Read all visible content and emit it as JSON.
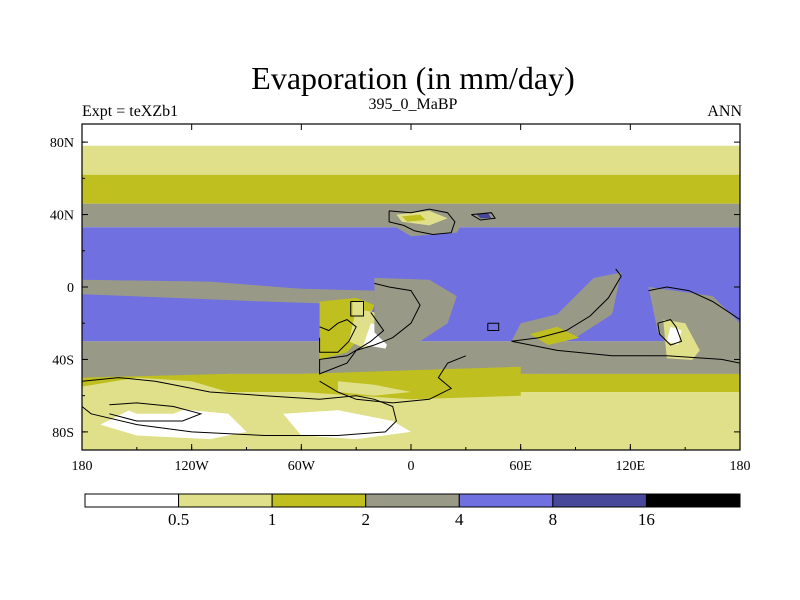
{
  "chart_data": {
    "type": "contour-map",
    "title": "Evaporation (in mm/day)",
    "left_label": "Expt = teXZb1",
    "center_label": "395_0_MaBP",
    "right_label": "ANN",
    "xlim": [
      -180,
      180
    ],
    "ylim": [
      -90,
      90
    ],
    "x_ticks": [
      {
        "value": -180,
        "label": "180"
      },
      {
        "value": -120,
        "label": "120W"
      },
      {
        "value": -60,
        "label": "60W"
      },
      {
        "value": 0,
        "label": "0"
      },
      {
        "value": 60,
        "label": "60E"
      },
      {
        "value": 120,
        "label": "120E"
      },
      {
        "value": 180,
        "label": "180"
      }
    ],
    "y_ticks": [
      {
        "value": 80,
        "label": "80N"
      },
      {
        "value": 40,
        "label": "40N"
      },
      {
        "value": 0,
        "label": "0"
      },
      {
        "value": -40,
        "label": "40S"
      },
      {
        "value": -80,
        "label": "80S"
      }
    ],
    "contour_levels": [
      0.5,
      1,
      2,
      4,
      8,
      16
    ],
    "colorbar_labels": [
      "0.5",
      "1",
      "2",
      "4",
      "8",
      "16"
    ],
    "colors": [
      "#ffffff",
      "#e0e08a",
      "#bfbf1f",
      "#999988",
      "#7070e0",
      "#48489a",
      "#000000"
    ],
    "bands": [
      {
        "lat_top": 90,
        "lat_bottom": 78,
        "class": 0
      },
      {
        "lat_top": 78,
        "lat_bottom": 62,
        "class": 1
      },
      {
        "lat_top": 62,
        "lat_bottom": 46,
        "class": 2
      },
      {
        "lat_top": 46,
        "lat_bottom": 33,
        "class": 3
      },
      {
        "lat_top": 33,
        "lat_bottom": -30,
        "class": 4
      },
      {
        "lat_top": -30,
        "lat_bottom": -48,
        "class": 3
      },
      {
        "lat_top": -48,
        "lat_bottom": -58,
        "class": 2
      },
      {
        "lat_top": -58,
        "lat_bottom": -90,
        "class": 1
      }
    ],
    "patches": [
      {
        "class": 3,
        "points": [
          [
            -180,
            4
          ],
          [
            -110,
            3
          ],
          [
            -60,
            -1
          ],
          [
            -20,
            -2
          ],
          [
            -20,
            -10
          ],
          [
            -80,
            -8
          ],
          [
            -180,
            -4
          ]
        ]
      },
      {
        "class": 3,
        "points": [
          [
            -180,
            -42
          ],
          [
            -150,
            -38
          ],
          [
            -130,
            -40
          ],
          [
            -100,
            -48
          ],
          [
            -180,
            -50
          ]
        ]
      },
      {
        "class": 1,
        "points": [
          [
            -180,
            -55
          ],
          [
            -150,
            -50
          ],
          [
            -120,
            -52
          ],
          [
            -100,
            -58
          ],
          [
            -120,
            -66
          ],
          [
            -180,
            -64
          ]
        ]
      },
      {
        "class": 2,
        "points": [
          [
            -50,
            -8
          ],
          [
            -30,
            -6
          ],
          [
            -20,
            -10
          ],
          [
            -26,
            -26
          ],
          [
            -35,
            -36
          ],
          [
            -50,
            -40
          ],
          [
            -50,
            -20
          ]
        ]
      },
      {
        "class": 1,
        "points": [
          [
            -30,
            -12
          ],
          [
            -20,
            -14
          ],
          [
            -15,
            -22
          ],
          [
            -25,
            -34
          ],
          [
            -34,
            -30
          ]
        ]
      },
      {
        "class": 0,
        "points": [
          [
            -22,
            -20
          ],
          [
            -10,
            -24
          ],
          [
            -14,
            -34
          ],
          [
            -26,
            -32
          ]
        ]
      },
      {
        "class": 3,
        "points": [
          [
            -20,
            5
          ],
          [
            10,
            4
          ],
          [
            25,
            -5
          ],
          [
            20,
            -20
          ],
          [
            5,
            -30
          ],
          [
            -10,
            -35
          ],
          [
            -20,
            -25
          ]
        ]
      },
      {
        "class": 1,
        "points": [
          [
            -32,
            -8
          ],
          [
            -26,
            -8
          ],
          [
            -26,
            -16
          ],
          [
            -32,
            -16
          ]
        ]
      },
      {
        "class": 3,
        "points": [
          [
            -10,
            40
          ],
          [
            20,
            42
          ],
          [
            30,
            38
          ],
          [
            25,
            30
          ],
          [
            0,
            28
          ],
          [
            -10,
            34
          ]
        ]
      },
      {
        "class": 1,
        "points": [
          [
            -8,
            40
          ],
          [
            10,
            42
          ],
          [
            20,
            38
          ],
          [
            10,
            34
          ],
          [
            -5,
            36
          ]
        ]
      },
      {
        "class": 2,
        "points": [
          [
            -5,
            39
          ],
          [
            5,
            40
          ],
          [
            8,
            37
          ],
          [
            -2,
            36
          ]
        ]
      },
      {
        "class": 5,
        "points": [
          [
            36,
            40
          ],
          [
            42,
            41
          ],
          [
            44,
            38
          ],
          [
            38,
            38
          ]
        ]
      },
      {
        "class": 3,
        "points": [
          [
            60,
            -20
          ],
          [
            80,
            -15
          ],
          [
            100,
            5
          ],
          [
            115,
            8
          ],
          [
            110,
            -15
          ],
          [
            90,
            -28
          ],
          [
            70,
            -32
          ],
          [
            55,
            -30
          ]
        ]
      },
      {
        "class": 2,
        "points": [
          [
            65,
            -26
          ],
          [
            80,
            -22
          ],
          [
            92,
            -28
          ],
          [
            75,
            -32
          ]
        ]
      },
      {
        "class": 3,
        "points": [
          [
            130,
            0
          ],
          [
            165,
            -5
          ],
          [
            180,
            -20
          ],
          [
            180,
            -42
          ],
          [
            150,
            -45
          ],
          [
            135,
            -25
          ]
        ]
      },
      {
        "class": 1,
        "points": [
          [
            138,
            -18
          ],
          [
            150,
            -20
          ],
          [
            158,
            -35
          ],
          [
            150,
            -45
          ],
          [
            140,
            -40
          ]
        ]
      },
      {
        "class": 0,
        "points": [
          [
            142,
            -22
          ],
          [
            148,
            -24
          ],
          [
            146,
            -32
          ],
          [
            140,
            -30
          ]
        ]
      },
      {
        "class": 3,
        "points": [
          [
            12,
            -40
          ],
          [
            60,
            -36
          ],
          [
            120,
            -38
          ],
          [
            180,
            -42
          ],
          [
            180,
            -46
          ],
          [
            100,
            -46
          ],
          [
            30,
            -48
          ]
        ]
      },
      {
        "class": 2,
        "points": [
          [
            -60,
            -48
          ],
          [
            0,
            -46
          ],
          [
            60,
            -44
          ],
          [
            60,
            -60
          ],
          [
            0,
            -62
          ],
          [
            -60,
            -58
          ]
        ]
      },
      {
        "class": 1,
        "points": [
          [
            -40,
            -52
          ],
          [
            -20,
            -54
          ],
          [
            0,
            -58
          ],
          [
            -20,
            -60
          ],
          [
            -40,
            -58
          ]
        ]
      },
      {
        "class": 0,
        "points": [
          [
            -150,
            -66
          ],
          [
            -120,
            -68
          ],
          [
            -100,
            -70
          ],
          [
            -90,
            -80
          ],
          [
            -110,
            -84
          ],
          [
            -150,
            -82
          ],
          [
            -170,
            -76
          ]
        ]
      },
      {
        "class": 0,
        "points": [
          [
            -70,
            -70
          ],
          [
            -40,
            -68
          ],
          [
            -10,
            -74
          ],
          [
            0,
            -80
          ],
          [
            -30,
            -84
          ],
          [
            -60,
            -82
          ]
        ]
      },
      {
        "class": 1,
        "points": [
          [
            -160,
            -66
          ],
          [
            -140,
            -64
          ],
          [
            -120,
            -66
          ],
          [
            -130,
            -70
          ],
          [
            -150,
            -70
          ]
        ]
      }
    ],
    "coastlines": [
      {
        "points": [
          [
            -180,
            -52
          ],
          [
            -160,
            -50
          ],
          [
            -140,
            -52
          ],
          [
            -130,
            -54
          ],
          [
            -110,
            -58
          ],
          [
            -80,
            -60
          ],
          [
            -50,
            -62
          ],
          [
            -30,
            -60
          ],
          [
            -20,
            -62
          ],
          [
            -10,
            -66
          ],
          [
            -8,
            -74
          ],
          [
            -14,
            -80
          ],
          [
            -40,
            -82
          ],
          [
            -80,
            -82
          ],
          [
            -120,
            -80
          ],
          [
            -150,
            -76
          ],
          [
            -175,
            -70
          ],
          [
            -180,
            -66
          ]
        ]
      },
      {
        "points": [
          [
            -165,
            -65
          ],
          [
            -150,
            -64
          ],
          [
            -130,
            -66
          ],
          [
            -115,
            -70
          ],
          [
            -125,
            -74
          ],
          [
            -150,
            -74
          ],
          [
            -165,
            -70
          ]
        ]
      },
      {
        "points": [
          [
            -50,
            -22
          ],
          [
            -45,
            -24
          ],
          [
            -40,
            -20
          ],
          [
            -35,
            -18
          ],
          [
            -30,
            -22
          ],
          [
            -34,
            -30
          ],
          [
            -40,
            -36
          ],
          [
            -50,
            -36
          ],
          [
            -50,
            -28
          ]
        ]
      },
      {
        "points": [
          [
            -20,
            2
          ],
          [
            -12,
            0
          ],
          [
            0,
            -2
          ],
          [
            5,
            -10
          ],
          [
            0,
            -20
          ],
          [
            -10,
            -28
          ],
          [
            -20,
            -32
          ],
          [
            -30,
            -35
          ],
          [
            -35,
            -42
          ],
          [
            -50,
            -48
          ],
          [
            -50,
            -40
          ],
          [
            -35,
            -38
          ],
          [
            -22,
            -30
          ],
          [
            -15,
            -24
          ],
          [
            -22,
            -14
          ]
        ]
      },
      {
        "points": [
          [
            -33,
            -8
          ],
          [
            -26,
            -8
          ],
          [
            -26,
            -16
          ],
          [
            -33,
            -16
          ],
          [
            -33,
            -8
          ]
        ]
      },
      {
        "points": [
          [
            -12,
            42
          ],
          [
            0,
            41
          ],
          [
            10,
            43
          ],
          [
            20,
            41
          ],
          [
            24,
            36
          ],
          [
            22,
            30
          ],
          [
            12,
            29
          ],
          [
            2,
            31
          ],
          [
            -4,
            34
          ],
          [
            -12,
            36
          ],
          [
            -12,
            42
          ]
        ]
      },
      {
        "points": [
          [
            33,
            40
          ],
          [
            44,
            41
          ],
          [
            46,
            38
          ],
          [
            38,
            37
          ],
          [
            33,
            40
          ]
        ]
      },
      {
        "points": [
          [
            30,
            -38
          ],
          [
            20,
            -42
          ],
          [
            15,
            -50
          ],
          [
            22,
            -56
          ],
          [
            10,
            -62
          ],
          [
            -10,
            -64
          ],
          [
            -30,
            -62
          ],
          [
            -40,
            -58
          ],
          [
            -50,
            -52
          ]
        ]
      },
      {
        "points": [
          [
            42,
            -20
          ],
          [
            48,
            -20
          ],
          [
            48,
            -24
          ],
          [
            42,
            -24
          ],
          [
            42,
            -20
          ]
        ]
      },
      {
        "points": [
          [
            55,
            -30
          ],
          [
            70,
            -28
          ],
          [
            85,
            -24
          ],
          [
            98,
            -16
          ],
          [
            108,
            -6
          ],
          [
            115,
            6
          ],
          [
            112,
            10
          ]
        ]
      },
      {
        "points": [
          [
            55,
            -30
          ],
          [
            80,
            -35
          ],
          [
            110,
            -38
          ],
          [
            140,
            -38
          ],
          [
            170,
            -40
          ],
          [
            180,
            -42
          ]
        ]
      },
      {
        "points": [
          [
            130,
            -2
          ],
          [
            140,
            0
          ],
          [
            152,
            -2
          ],
          [
            165,
            -8
          ],
          [
            180,
            -18
          ]
        ]
      },
      {
        "points": [
          [
            135,
            -20
          ],
          [
            142,
            -18
          ],
          [
            145,
            -22
          ],
          [
            148,
            -30
          ],
          [
            142,
            -32
          ],
          [
            136,
            -26
          ],
          [
            135,
            -20
          ]
        ]
      }
    ]
  }
}
